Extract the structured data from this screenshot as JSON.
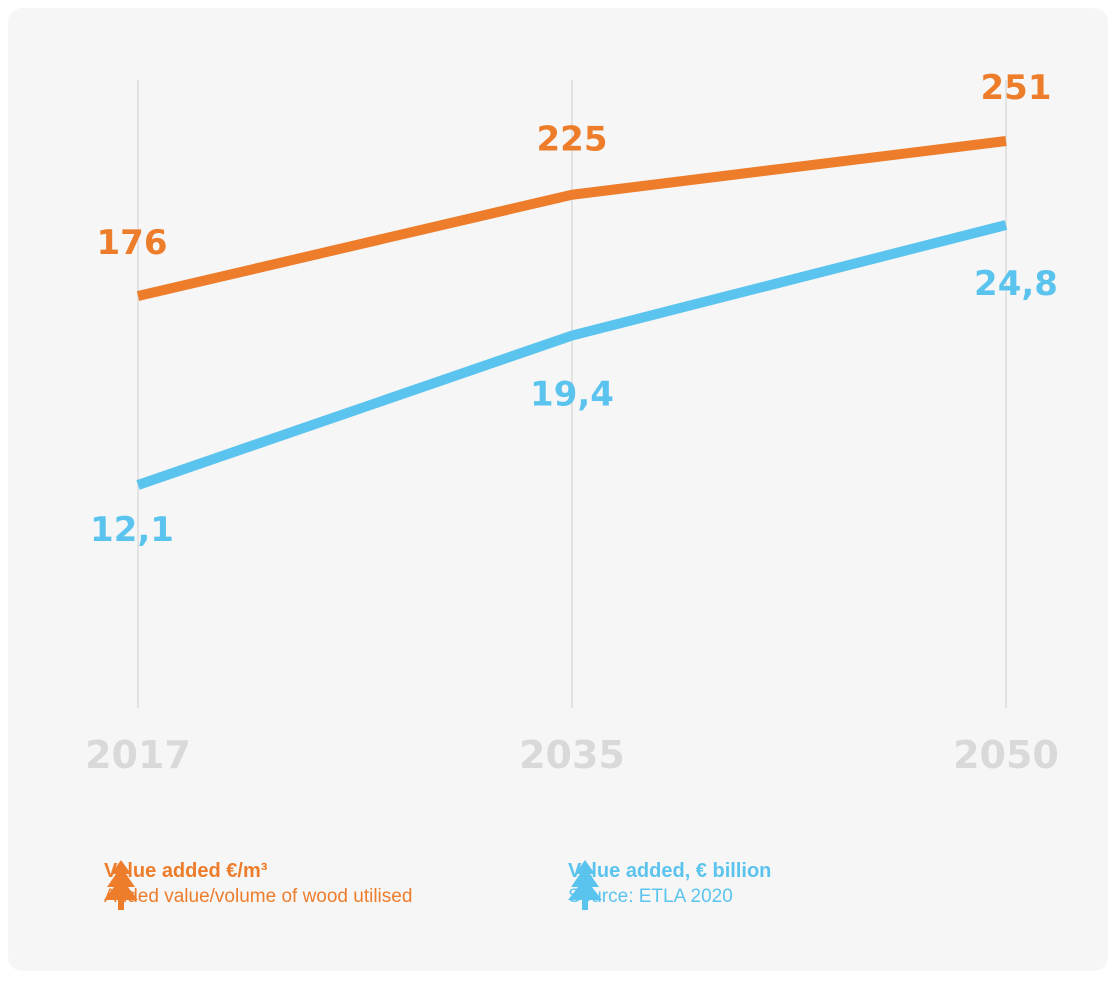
{
  "chart_data": {
    "type": "line",
    "categories": [
      "2017",
      "2035",
      "2050"
    ],
    "series": [
      {
        "name": "Value added €/m³",
        "values": [
          176,
          225,
          251
        ],
        "labels": [
          "176",
          "225",
          "251"
        ],
        "color": "#ed7d2b"
      },
      {
        "name": "Value added, € billion",
        "values": [
          12.1,
          19.4,
          24.8
        ],
        "labels": [
          "12,1",
          "19,4",
          "24,8"
        ],
        "color": "#5bc4ee"
      }
    ],
    "grid": "vertical lines at categories",
    "legend_position": "bottom"
  },
  "legend": {
    "orange": {
      "title": "Value added €/m³",
      "subtitle": "Added value/volume of wood utilised",
      "icon": "tree-icon"
    },
    "blue": {
      "title": "Value added, € billion",
      "subtitle": "Source: ETLA 2020",
      "icon": "tree-icon"
    }
  }
}
